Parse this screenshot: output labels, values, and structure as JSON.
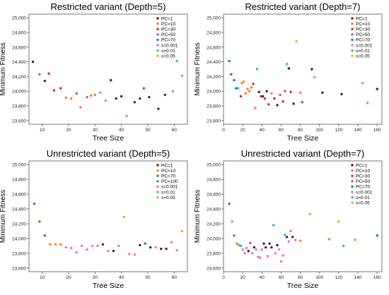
{
  "colors": {
    "PC=1": "#4d1a33",
    "PC=10": "#ff7f0e",
    "PC=30": "#d62728",
    "PC=50": "#b050c8",
    "PC=70": "#1f77b4",
    "PC=100": "#2ca02c",
    "s=0.001": "#ff69b4",
    "s=0.01": "#17becf",
    "s=0.05": "#e3b505"
  },
  "chart_data": [
    {
      "type": "scatter",
      "title": "Restricted variant (Depth=5)",
      "xlabel": "Tree Size",
      "ylabel": "Minimum Fitness",
      "xlim": [
        5,
        65
      ],
      "ylim": [
        23550,
        25050
      ],
      "xticks": [
        "10",
        "20",
        "30",
        "40",
        "50",
        "60"
      ],
      "yticks": [
        "23,600",
        "23,800",
        "24,000",
        "24,200",
        "24,400",
        "24,600",
        "24,800",
        "25,000"
      ],
      "legend": {
        "position": "top-right",
        "entries": [
          "PC=1",
          "PC=10",
          "PC=30",
          "PC=50",
          "PC=70",
          "s=0.001",
          "s=0.01",
          "s=0.05"
        ]
      },
      "points": [
        {
          "s": "PC=1",
          "x": 6.5,
          "y": 24400
        },
        {
          "s": "PC=50",
          "x": 9,
          "y": 24230
        },
        {
          "s": "PC=1",
          "x": 11,
          "y": 24140
        },
        {
          "s": "PC=30",
          "x": 12.5,
          "y": 24240
        },
        {
          "s": "PC=30",
          "x": 14.5,
          "y": 24010
        },
        {
          "s": "PC=30",
          "x": 17,
          "y": 24040
        },
        {
          "s": "PC=10",
          "x": 19,
          "y": 23910
        },
        {
          "s": "PC=10",
          "x": 21,
          "y": 23900
        },
        {
          "s": "PC=50",
          "x": 23,
          "y": 23970
        },
        {
          "s": "s=0.001",
          "x": 24.5,
          "y": 23780
        },
        {
          "s": "PC=50",
          "x": 27,
          "y": 23920
        },
        {
          "s": "PC=10",
          "x": 28.5,
          "y": 23940
        },
        {
          "s": "PC=10",
          "x": 30,
          "y": 23950
        },
        {
          "s": "s=0.001",
          "x": 32,
          "y": 23980
        },
        {
          "s": "s=0.001",
          "x": 34,
          "y": 23870
        },
        {
          "s": "PC=1",
          "x": 36,
          "y": 24150
        },
        {
          "s": "PC=1",
          "x": 38,
          "y": 23900
        },
        {
          "s": "PC=1",
          "x": 40,
          "y": 23930
        },
        {
          "s": "s=0.001",
          "x": 42,
          "y": 23660
        },
        {
          "s": "PC=1",
          "x": 45,
          "y": 23850
        },
        {
          "s": "PC=1",
          "x": 47,
          "y": 23900
        },
        {
          "s": "PC=30",
          "x": 48.5,
          "y": 24040
        },
        {
          "s": "PC=1",
          "x": 50.5,
          "y": 23920
        },
        {
          "s": "PC=1",
          "x": 54,
          "y": 23760
        },
        {
          "s": "PC=1",
          "x": 56.5,
          "y": 23950
        },
        {
          "s": "s=0.001",
          "x": 59.5,
          "y": 24000
        },
        {
          "s": "s=0.01",
          "x": 61,
          "y": 24410
        },
        {
          "s": "s=0.001",
          "x": 63,
          "y": 24210
        }
      ]
    },
    {
      "type": "scatter",
      "title": "Restricted variant (Depth=7)",
      "xlabel": "Tree Size",
      "ylabel": "Minimum Fitness",
      "xlim": [
        0,
        165
      ],
      "ylim": [
        23550,
        25050
      ],
      "xticks": [
        "0",
        "20",
        "40",
        "60",
        "80",
        "100",
        "120",
        "140",
        "160"
      ],
      "yticks": [
        "23,600",
        "23,800",
        "24,000",
        "24,200",
        "24,400",
        "24,600",
        "24,800",
        "25,000"
      ],
      "legend": {
        "position": "top-right",
        "entries": [
          "PC=1",
          "PC=10",
          "PC=30",
          "PC=50",
          "PC=70",
          "s=0.001",
          "s=0.01",
          "s=0.05"
        ]
      },
      "points": [
        {
          "s": "PC=70",
          "x": 6,
          "y": 24410
        },
        {
          "s": "PC=30",
          "x": 8,
          "y": 24230
        },
        {
          "s": "PC=70",
          "x": 11,
          "y": 24150
        },
        {
          "s": "PC=70",
          "x": 13,
          "y": 24040
        },
        {
          "s": "s=0.01",
          "x": 15,
          "y": 24040
        },
        {
          "s": "PC=30",
          "x": 18,
          "y": 23930
        },
        {
          "s": "PC=10",
          "x": 19,
          "y": 24110
        },
        {
          "s": "PC=10",
          "x": 21,
          "y": 24130
        },
        {
          "s": "PC=10",
          "x": 23,
          "y": 23970
        },
        {
          "s": "PC=10",
          "x": 25,
          "y": 24030
        },
        {
          "s": "PC=10",
          "x": 27,
          "y": 24000
        },
        {
          "s": "PC=10",
          "x": 29,
          "y": 24050
        },
        {
          "s": "PC=30",
          "x": 31,
          "y": 24100
        },
        {
          "s": "s=0.001",
          "x": 33,
          "y": 23770
        },
        {
          "s": "s=0.01",
          "x": 35,
          "y": 24300
        },
        {
          "s": "PC=1",
          "x": 37,
          "y": 23990
        },
        {
          "s": "PC=30",
          "x": 39,
          "y": 23930
        },
        {
          "s": "PC=1",
          "x": 41,
          "y": 23930
        },
        {
          "s": "PC=30",
          "x": 43,
          "y": 23900
        },
        {
          "s": "PC=1",
          "x": 45,
          "y": 24000
        },
        {
          "s": "PC=30",
          "x": 47,
          "y": 23820
        },
        {
          "s": "s=0.001",
          "x": 50,
          "y": 23970
        },
        {
          "s": "PC=30",
          "x": 53,
          "y": 23900
        },
        {
          "s": "PC=1",
          "x": 56,
          "y": 23810
        },
        {
          "s": "PC=50",
          "x": 59,
          "y": 23950
        },
        {
          "s": "PC=30",
          "x": 62,
          "y": 23860
        },
        {
          "s": "PC=50",
          "x": 64,
          "y": 24000
        },
        {
          "s": "s=0.01",
          "x": 66,
          "y": 24370
        },
        {
          "s": "PC=1",
          "x": 68,
          "y": 24310
        },
        {
          "s": "PC=30",
          "x": 70,
          "y": 23990
        },
        {
          "s": "PC=1",
          "x": 73,
          "y": 23830
        },
        {
          "s": "s=0.05",
          "x": 76,
          "y": 24680
        },
        {
          "s": "s=0.001",
          "x": 80,
          "y": 23980
        },
        {
          "s": "PC=70",
          "x": 82,
          "y": 23850
        },
        {
          "s": "PC=1",
          "x": 92,
          "y": 24300
        },
        {
          "s": "s=0.001",
          "x": 95,
          "y": 24190
        },
        {
          "s": "PC=1",
          "x": 103,
          "y": 23980
        },
        {
          "s": "PC=1",
          "x": 123,
          "y": 23960
        },
        {
          "s": "s=0.001",
          "x": 145,
          "y": 24110
        },
        {
          "s": "s=0.001",
          "x": 150,
          "y": 23840
        },
        {
          "s": "PC=1",
          "x": 160,
          "y": 24030
        }
      ]
    },
    {
      "type": "scatter",
      "title": "Unrestricted variant (Depth=5)",
      "xlabel": "Tree Size",
      "ylabel": "Minimum Fitness",
      "xlim": [
        5,
        65
      ],
      "ylim": [
        23550,
        25050
      ],
      "xticks": [
        "10",
        "20",
        "30",
        "40",
        "50",
        "60"
      ],
      "yticks": [
        "23,600",
        "23,800",
        "24,000",
        "24,200",
        "24,400",
        "24,600",
        "24,800",
        "25,000"
      ],
      "legend": {
        "position": "top-right",
        "entries": [
          "PC=1",
          "PC=10",
          "PC=70",
          "PC=100",
          "s=0.001",
          "s=0.01",
          "s=0.05"
        ]
      },
      "points": [
        {
          "s": "PC=100",
          "x": 7,
          "y": 24470
        },
        {
          "s": "PC=100",
          "x": 9,
          "y": 24230
        },
        {
          "s": "PC=70",
          "x": 11,
          "y": 24040
        },
        {
          "s": "PC=10",
          "x": 13,
          "y": 23920
        },
        {
          "s": "PC=10",
          "x": 15,
          "y": 23920
        },
        {
          "s": "PC=10",
          "x": 17,
          "y": 23920
        },
        {
          "s": "s=0.001",
          "x": 19,
          "y": 23880
        },
        {
          "s": "s=0.001",
          "x": 21,
          "y": 23870
        },
        {
          "s": "s=0.001",
          "x": 23,
          "y": 23810
        },
        {
          "s": "s=0.001",
          "x": 25,
          "y": 23900
        },
        {
          "s": "s=0.001",
          "x": 27,
          "y": 23850
        },
        {
          "s": "s=0.001",
          "x": 29,
          "y": 23900
        },
        {
          "s": "s=0.001",
          "x": 31,
          "y": 23900
        },
        {
          "s": "PC=1",
          "x": 33,
          "y": 23920
        },
        {
          "s": "s=0.001",
          "x": 35,
          "y": 23830
        },
        {
          "s": "PC=1",
          "x": 37,
          "y": 23830
        },
        {
          "s": "s=0.001",
          "x": 39,
          "y": 23900
        },
        {
          "s": "s=0.05",
          "x": 41,
          "y": 24290
        },
        {
          "s": "s=0.001",
          "x": 43,
          "y": 23790
        },
        {
          "s": "s=0.001",
          "x": 45,
          "y": 23780
        },
        {
          "s": "PC=1",
          "x": 47,
          "y": 23910
        },
        {
          "s": "PC=70",
          "x": 49,
          "y": 23930
        },
        {
          "s": "PC=1",
          "x": 51,
          "y": 23880
        },
        {
          "s": "s=0.001",
          "x": 53,
          "y": 23880
        },
        {
          "s": "PC=1",
          "x": 55,
          "y": 23860
        },
        {
          "s": "PC=1",
          "x": 57,
          "y": 23860
        },
        {
          "s": "s=0.001",
          "x": 59,
          "y": 23950
        },
        {
          "s": "s=0.001",
          "x": 61,
          "y": 23840
        },
        {
          "s": "s=0.05",
          "x": 63,
          "y": 24100
        }
      ]
    },
    {
      "type": "scatter",
      "title": "Unrestricted variant (Depth=7)",
      "xlabel": "Tree Size",
      "ylabel": "Minimum Fitness",
      "xlim": [
        0,
        165
      ],
      "ylim": [
        23550,
        25050
      ],
      "xticks": [
        "0",
        "20",
        "40",
        "60",
        "80",
        "100",
        "120",
        "140",
        "160"
      ],
      "yticks": [
        "23,600",
        "23,800",
        "24,000",
        "24,200",
        "24,400",
        "24,600",
        "24,800",
        "25,000"
      ],
      "legend": {
        "position": "top-right",
        "entries": [
          "PC=1",
          "PC=10",
          "PC=30",
          "PC=50",
          "PC=70",
          "s=0.001",
          "s=0.01",
          "s=0.05"
        ]
      },
      "points": [
        {
          "s": "PC=70",
          "x": 6,
          "y": 24470
        },
        {
          "s": "s=0.001",
          "x": 9,
          "y": 24230
        },
        {
          "s": "PC=50",
          "x": 11,
          "y": 24040
        },
        {
          "s": "s=0.01",
          "x": 14,
          "y": 23930
        },
        {
          "s": "PC=10",
          "x": 16,
          "y": 23910
        },
        {
          "s": "s=0.01",
          "x": 18,
          "y": 23900
        },
        {
          "s": "s=0.001",
          "x": 20,
          "y": 23850
        },
        {
          "s": "s=0.001",
          "x": 22,
          "y": 23800
        },
        {
          "s": "s=0.001",
          "x": 24,
          "y": 23870
        },
        {
          "s": "PC=1",
          "x": 26,
          "y": 23830
        },
        {
          "s": "PC=50",
          "x": 28,
          "y": 23940
        },
        {
          "s": "s=0.001",
          "x": 30,
          "y": 23800
        },
        {
          "s": "PC=1",
          "x": 32,
          "y": 23880
        },
        {
          "s": "s=0.001",
          "x": 34,
          "y": 23850
        },
        {
          "s": "s=0.001",
          "x": 36,
          "y": 23750
        },
        {
          "s": "s=0.001",
          "x": 38,
          "y": 23740
        },
        {
          "s": "s=0.001",
          "x": 40,
          "y": 23850
        },
        {
          "s": "PC=1",
          "x": 42,
          "y": 23930
        },
        {
          "s": "PC=1",
          "x": 44,
          "y": 23880
        },
        {
          "s": "s=0.001",
          "x": 46,
          "y": 23760
        },
        {
          "s": "PC=1",
          "x": 48,
          "y": 23930
        },
        {
          "s": "PC=1",
          "x": 50,
          "y": 23880
        },
        {
          "s": "s=0.01",
          "x": 52,
          "y": 24180
        },
        {
          "s": "s=0.001",
          "x": 54,
          "y": 23800
        },
        {
          "s": "PC=1",
          "x": 56,
          "y": 23910
        },
        {
          "s": "s=0.001",
          "x": 58,
          "y": 23850
        },
        {
          "s": "s=0.001",
          "x": 60,
          "y": 23690
        },
        {
          "s": "s=0.001",
          "x": 62,
          "y": 23770
        },
        {
          "s": "s=0.01",
          "x": 64,
          "y": 24050
        },
        {
          "s": "PC=1",
          "x": 66,
          "y": 24020
        },
        {
          "s": "s=0.001",
          "x": 68,
          "y": 23960
        },
        {
          "s": "PC=10",
          "x": 70,
          "y": 24100
        },
        {
          "s": "PC=1",
          "x": 72,
          "y": 24020
        },
        {
          "s": "s=0.001",
          "x": 75,
          "y": 23980
        },
        {
          "s": "PC=10",
          "x": 80,
          "y": 23970
        },
        {
          "s": "s=0.05",
          "x": 90,
          "y": 24330
        },
        {
          "s": "PC=10",
          "x": 110,
          "y": 23990
        },
        {
          "s": "s=0.05",
          "x": 120,
          "y": 24230
        },
        {
          "s": "s=0.01",
          "x": 125,
          "y": 23900
        },
        {
          "s": "PC=10",
          "x": 137,
          "y": 23980
        },
        {
          "s": "PC=70",
          "x": 160,
          "y": 24040
        }
      ]
    }
  ]
}
